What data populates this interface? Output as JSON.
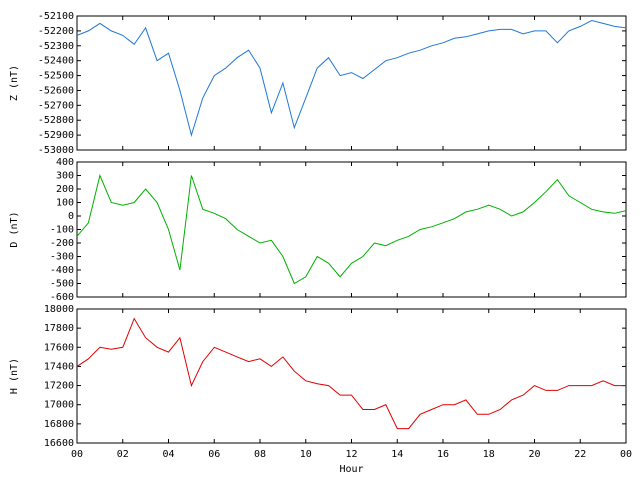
{
  "chart_data": [
    {
      "type": "line",
      "ylabel": "Z (nT)",
      "x": [
        0,
        0.5,
        1,
        1.5,
        2,
        2.5,
        3,
        3.5,
        4,
        4.5,
        5,
        5.5,
        6,
        6.5,
        7,
        7.5,
        8,
        8.5,
        9,
        9.5,
        10,
        10.5,
        11,
        11.5,
        12,
        12.5,
        13,
        13.5,
        14,
        14.5,
        15,
        15.5,
        16,
        16.5,
        17,
        17.5,
        18,
        18.5,
        19,
        19.5,
        20,
        20.5,
        21,
        21.5,
        22,
        22.5,
        23,
        23.5,
        24
      ],
      "series": [
        {
          "color": "#1e78d8",
          "values": [
            -52230,
            -52200,
            -52150,
            -52200,
            -52230,
            -52290,
            -52180,
            -52400,
            -52350,
            -52600,
            -52900,
            -52650,
            -52500,
            -52450,
            -52380,
            -52330,
            -52450,
            -52750,
            -52550,
            -52850,
            -52650,
            -52450,
            -52380,
            -52500,
            -52480,
            -52520,
            -52460,
            -52400,
            -52380,
            -52350,
            -52330,
            -52300,
            -52280,
            -52250,
            -52240,
            -52220,
            -52200,
            -52190,
            -52190,
            -52220,
            -52200,
            -52200,
            -52280,
            -52200,
            -52170,
            -52130,
            -52150,
            -52170,
            -52180
          ]
        }
      ],
      "xlim": [
        0,
        24
      ],
      "ylim": [
        -53000,
        -52100
      ],
      "yticks": [
        -52100,
        -52200,
        -52300,
        -52400,
        -52500,
        -52600,
        -52700,
        -52800,
        -52900,
        -53000
      ]
    },
    {
      "type": "line",
      "ylabel": "D (nT)",
      "x": [
        0,
        0.5,
        1,
        1.5,
        2,
        2.5,
        3,
        3.5,
        4,
        4.5,
        5,
        5.5,
        6,
        6.5,
        7,
        7.5,
        8,
        8.5,
        9,
        9.5,
        10,
        10.5,
        11,
        11.5,
        12,
        12.5,
        13,
        13.5,
        14,
        14.5,
        15,
        15.5,
        16,
        16.5,
        17,
        17.5,
        18,
        18.5,
        19,
        19.5,
        20,
        20.5,
        21,
        21.5,
        22,
        22.5,
        23,
        23.5,
        24
      ],
      "series": [
        {
          "color": "#00b000",
          "values": [
            -150,
            -50,
            300,
            100,
            80,
            100,
            200,
            100,
            -100,
            -400,
            300,
            50,
            20,
            -20,
            -100,
            -150,
            -200,
            -180,
            -300,
            -500,
            -450,
            -300,
            -350,
            -450,
            -350,
            -300,
            -200,
            -220,
            -180,
            -150,
            -100,
            -80,
            -50,
            -20,
            30,
            50,
            80,
            50,
            0,
            30,
            100,
            180,
            270,
            150,
            100,
            50,
            30,
            20,
            40
          ]
        }
      ],
      "xlim": [
        0,
        24
      ],
      "ylim": [
        -600,
        400
      ],
      "yticks": [
        400,
        300,
        200,
        100,
        0,
        -100,
        -200,
        -300,
        -400,
        -500,
        -600
      ]
    },
    {
      "type": "line",
      "ylabel": "H (nT)",
      "xlabel": "Hour",
      "x": [
        0,
        0.5,
        1,
        1.5,
        2,
        2.5,
        3,
        3.5,
        4,
        4.5,
        5,
        5.5,
        6,
        6.5,
        7,
        7.5,
        8,
        8.5,
        9,
        9.5,
        10,
        10.5,
        11,
        11.5,
        12,
        12.5,
        13,
        13.5,
        14,
        14.5,
        15,
        15.5,
        16,
        16.5,
        17,
        17.5,
        18,
        18.5,
        19,
        19.5,
        20,
        20.5,
        21,
        21.5,
        22,
        22.5,
        23,
        23.5,
        24
      ],
      "series": [
        {
          "color": "#e00000",
          "values": [
            17400,
            17480,
            17600,
            17580,
            17600,
            17900,
            17700,
            17600,
            17550,
            17700,
            17200,
            17450,
            17600,
            17550,
            17500,
            17450,
            17480,
            17400,
            17500,
            17350,
            17250,
            17220,
            17200,
            17100,
            17100,
            16950,
            16950,
            17000,
            16750,
            16750,
            16900,
            16950,
            17000,
            17000,
            17050,
            16900,
            16900,
            16950,
            17050,
            17100,
            17200,
            17150,
            17150,
            17200,
            17200,
            17200,
            17250,
            17200,
            17200
          ]
        }
      ],
      "xlim": [
        0,
        24
      ],
      "ylim": [
        16600,
        18000
      ],
      "yticks": [
        18000,
        17800,
        17600,
        17400,
        17200,
        17000,
        16800,
        16600
      ],
      "xticks": [
        {
          "value": 0,
          "label": "00"
        },
        {
          "value": 2,
          "label": "02"
        },
        {
          "value": 4,
          "label": "04"
        },
        {
          "value": 6,
          "label": "06"
        },
        {
          "value": 8,
          "label": "08"
        },
        10,
        12,
        14,
        16,
        18,
        20,
        22,
        {
          "value": 24,
          "label": "00"
        }
      ]
    }
  ]
}
